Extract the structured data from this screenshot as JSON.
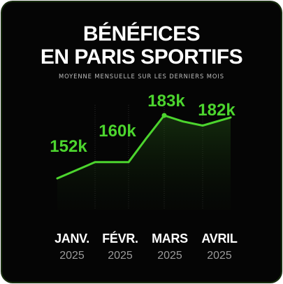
{
  "header": {
    "title_line1": "BÉNÉFICES",
    "title_line2": "EN PARIS SPORTIFS",
    "subtitle": "MOYENNE MENSUELLE SUR LES DERNIERS MOIS"
  },
  "colors": {
    "accent": "#4cd52e",
    "background": "#050505",
    "title": "#ffffff",
    "subtitle": "#bdbdbd",
    "year": "#9a9a9a"
  },
  "chart_data": {
    "type": "line",
    "title": "BÉNÉFICES EN PARIS SPORTIFS",
    "subtitle": "MOYENNE MENSUELLE SUR LES DERNIERS MOIS",
    "categories": [
      {
        "month": "JANV.",
        "year": "2025"
      },
      {
        "month": "FÉVR.",
        "year": "2025"
      },
      {
        "month": "MARS",
        "year": "2025"
      },
      {
        "month": "AVRIL",
        "year": "2025"
      }
    ],
    "x": [
      0,
      0.5,
      1,
      1.5,
      2,
      2.5,
      3,
      3.5
    ],
    "values": [
      152,
      160,
      160,
      172,
      183,
      180,
      178,
      182
    ],
    "labels": [
      {
        "text": "152k",
        "x": 0,
        "value": 152
      },
      {
        "text": "160k",
        "x": 1,
        "value": 160
      },
      {
        "text": "183k",
        "x": 2,
        "value": 183
      },
      {
        "text": "182k",
        "x": 3,
        "value": 182
      }
    ],
    "marker_points": [
      {
        "x": 2,
        "value": 183
      }
    ],
    "unit": "k",
    "grid": "vertical",
    "legend": "none"
  }
}
